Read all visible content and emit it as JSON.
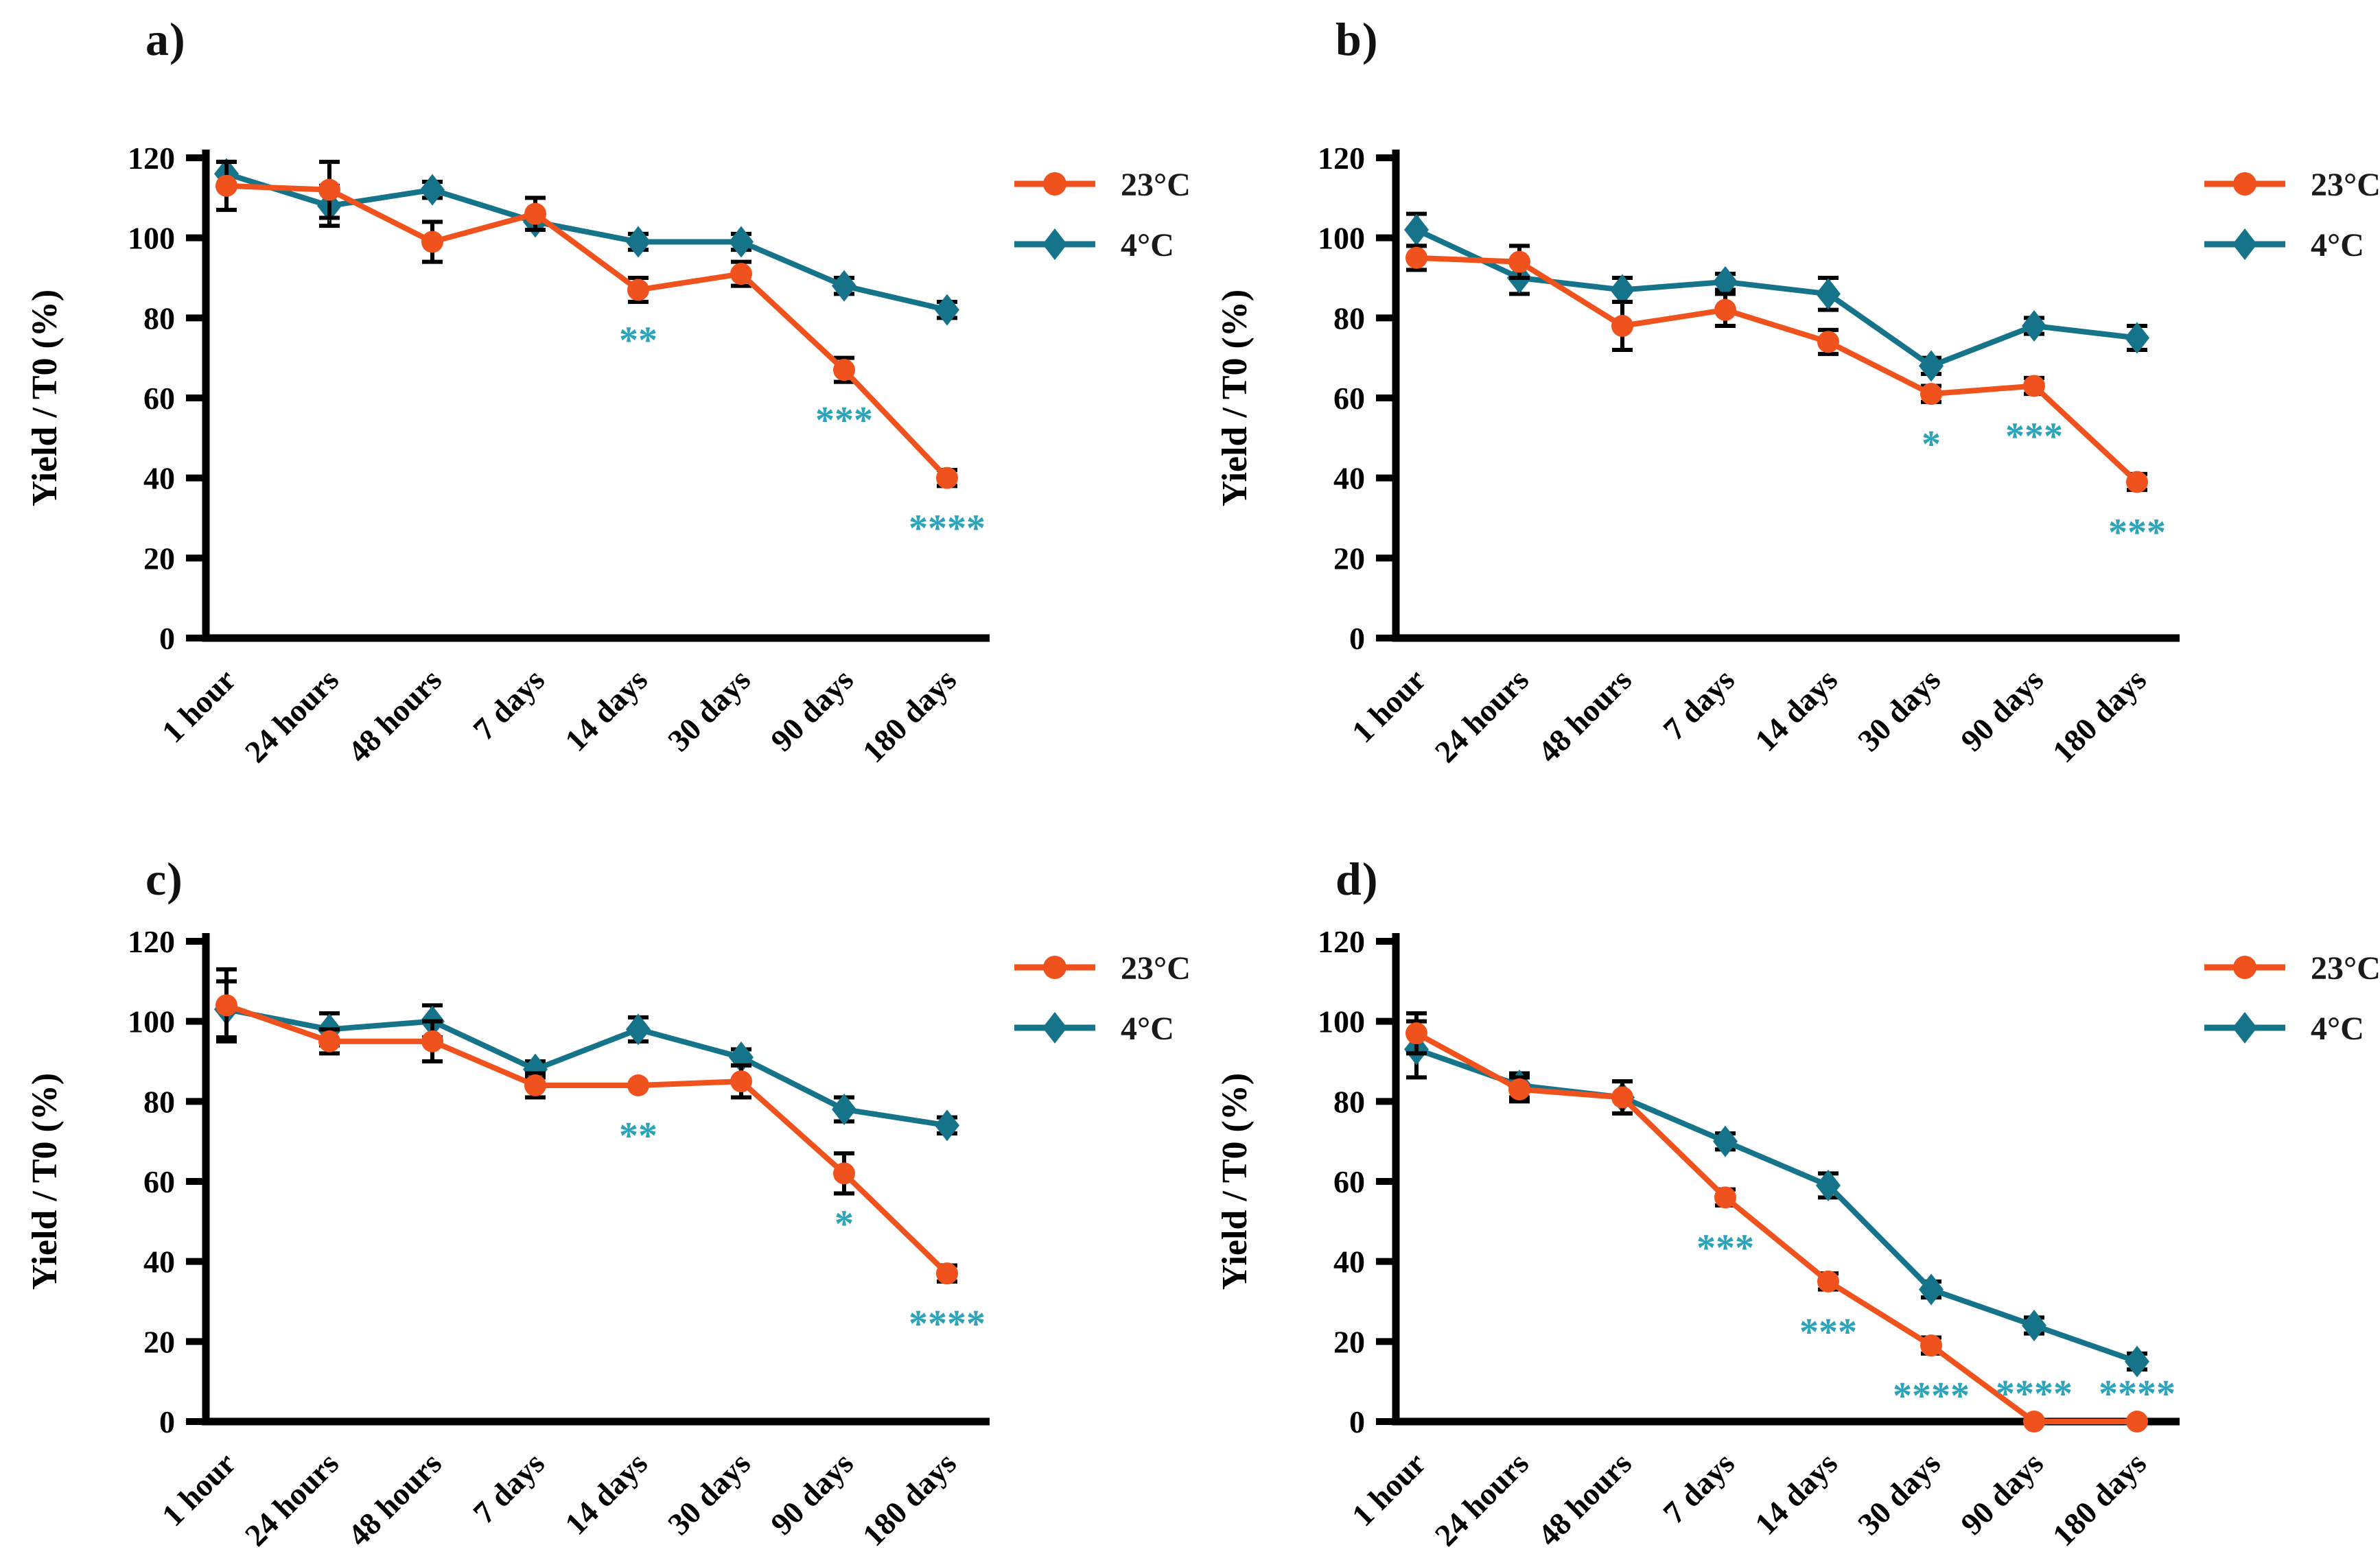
{
  "figure": {
    "ylabel": "Yield / T0 (%)",
    "categories": [
      "1 hour",
      "24 hours",
      "48 hours",
      "7 days",
      "14 days",
      "30 days",
      "90 days",
      "180 days"
    ],
    "y_ticks": [
      0,
      20,
      40,
      60,
      80,
      100,
      120
    ],
    "legend": [
      "23°C",
      "4°C"
    ],
    "colors": {
      "room_temp": "#F0521E",
      "cold": "#16748A",
      "stars": "#2BA3B8",
      "axis": "#000000"
    }
  },
  "chart_data": [
    {
      "panel": "a)",
      "type": "line",
      "ylabel": "Yield / T0 (%)",
      "ylim": [
        0,
        120
      ],
      "y_ticks": [
        0,
        20,
        40,
        60,
        80,
        100,
        120
      ],
      "categories": [
        "1 hour",
        "24 hours",
        "48 hours",
        "7 days",
        "14 days",
        "30 days",
        "90 days",
        "180 days"
      ],
      "series": [
        {
          "name": "23°C",
          "color": "#F0521E",
          "marker": "circle",
          "values": [
            113,
            112,
            99,
            106,
            87,
            91,
            67,
            40
          ],
          "errors": [
            6,
            7,
            5,
            4,
            3,
            3,
            3,
            2
          ]
        },
        {
          "name": "4°C",
          "color": "#16748A",
          "marker": "diamond",
          "values": [
            116,
            108,
            112,
            104,
            99,
            99,
            88,
            82
          ],
          "errors": [
            3,
            5,
            2,
            0,
            2,
            2,
            2,
            2
          ]
        }
      ],
      "significance": [
        {
          "category": "14 days",
          "label": "**"
        },
        {
          "category": "90 days",
          "label": "***"
        },
        {
          "category": "180 days",
          "label": "****"
        }
      ]
    },
    {
      "panel": "b)",
      "type": "line",
      "ylabel": "Yield / T0 (%)",
      "ylim": [
        0,
        120
      ],
      "y_ticks": [
        0,
        20,
        40,
        60,
        80,
        100,
        120
      ],
      "categories": [
        "1 hour",
        "24 hours",
        "48 hours",
        "7 days",
        "14 days",
        "30 days",
        "90 days",
        "180 days"
      ],
      "series": [
        {
          "name": "23°C",
          "color": "#F0521E",
          "marker": "circle",
          "values": [
            95,
            94,
            78,
            82,
            74,
            61,
            63,
            39
          ],
          "errors": [
            3,
            4,
            6,
            4,
            3,
            2,
            2,
            2
          ]
        },
        {
          "name": "4°C",
          "color": "#16748A",
          "marker": "diamond",
          "values": [
            102,
            90,
            87,
            89,
            86,
            68,
            78,
            75
          ],
          "errors": [
            4,
            4,
            3,
            2,
            4,
            2,
            2,
            3
          ]
        }
      ],
      "significance": [
        {
          "category": "30 days",
          "label": "*"
        },
        {
          "category": "90 days",
          "label": "***"
        },
        {
          "category": "180 days",
          "label": "***"
        }
      ]
    },
    {
      "panel": "c)",
      "type": "line",
      "ylabel": "Yield / T0 (%)",
      "ylim": [
        0,
        120
      ],
      "y_ticks": [
        0,
        20,
        40,
        60,
        80,
        100,
        120
      ],
      "categories": [
        "1 hour",
        "24 hours",
        "48 hours",
        "7 days",
        "14 days",
        "30 days",
        "90 days",
        "180 days"
      ],
      "series": [
        {
          "name": "23°C",
          "color": "#F0521E",
          "marker": "circle",
          "values": [
            104,
            95,
            95,
            84,
            84,
            85,
            62,
            37
          ],
          "errors": [
            9,
            3,
            5,
            3,
            0,
            4,
            5,
            2
          ]
        },
        {
          "name": "4°C",
          "color": "#16748A",
          "marker": "diamond",
          "values": [
            103,
            98,
            100,
            88,
            98,
            91,
            78,
            74
          ],
          "errors": [
            7,
            4,
            4,
            2,
            3,
            2,
            3,
            2
          ]
        }
      ],
      "significance": [
        {
          "category": "14 days",
          "label": "**"
        },
        {
          "category": "90 days",
          "label": "*"
        },
        {
          "category": "180 days",
          "label": "****"
        }
      ]
    },
    {
      "panel": "d)",
      "type": "line",
      "ylabel": "Yield / T0 (%)",
      "ylim": [
        0,
        120
      ],
      "y_ticks": [
        0,
        20,
        40,
        60,
        80,
        100,
        120
      ],
      "categories": [
        "1 hour",
        "24 hours",
        "48 hours",
        "7 days",
        "14 days",
        "30 days",
        "90 days",
        "180 days"
      ],
      "series": [
        {
          "name": "23°C",
          "color": "#F0521E",
          "marker": "circle",
          "values": [
            97,
            83,
            81,
            56,
            35,
            19,
            0,
            0
          ],
          "errors": [
            5,
            3,
            4,
            2,
            2,
            2,
            0,
            0
          ]
        },
        {
          "name": "4°C",
          "color": "#16748A",
          "marker": "diamond",
          "values": [
            93,
            84,
            81,
            70,
            59,
            33,
            24,
            15
          ],
          "errors": [
            7,
            3,
            4,
            2,
            3,
            2,
            2,
            2
          ]
        }
      ],
      "significance": [
        {
          "category": "7 days",
          "label": "***"
        },
        {
          "category": "14 days",
          "label": "***"
        },
        {
          "category": "30 days",
          "label": "****"
        },
        {
          "category": "90 days",
          "label": "****"
        },
        {
          "category": "180 days",
          "label": "****"
        }
      ]
    }
  ]
}
